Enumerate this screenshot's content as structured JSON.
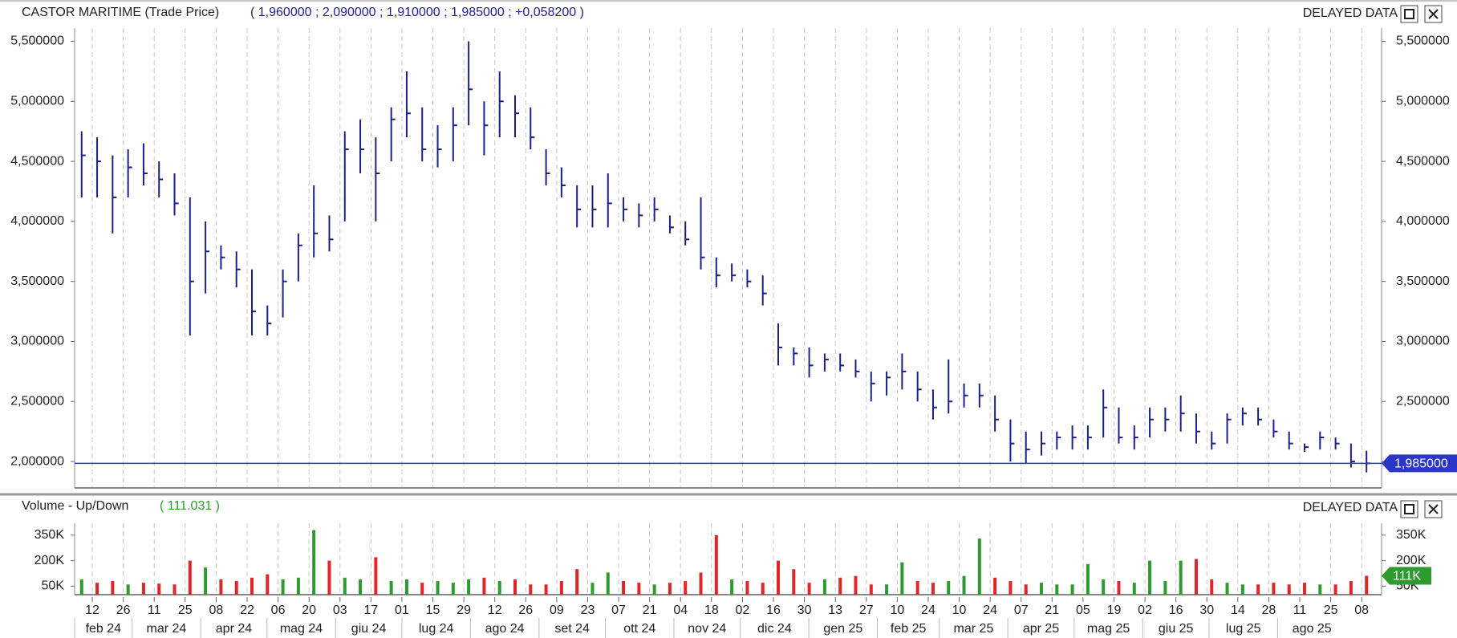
{
  "chart_data": [
    {
      "type": "ohlc",
      "title": "CASTOR MARITIME (Trade Price)",
      "quote": "( 1,960000 ;  2,090000 ;  1,910000 ;  1,985000 ;  +0,058200 )",
      "status": "DELAYED DATA",
      "color": "#1c1f8a",
      "x": [
        "2024-02-05",
        "2024-02-12",
        "2024-02-19",
        "2024-02-26",
        "2024-03-04",
        "2024-03-11",
        "2024-03-18",
        "2024-03-25",
        "2024-04-01",
        "2024-04-08",
        "2024-04-15",
        "2024-04-22",
        "2024-04-29",
        "2024-05-06",
        "2024-05-13",
        "2024-05-20",
        "2024-05-27",
        "2024-06-03",
        "2024-06-10",
        "2024-06-17",
        "2024-06-24",
        "2024-07-01",
        "2024-07-08",
        "2024-07-15",
        "2024-07-22",
        "2024-07-29",
        "2024-08-05",
        "2024-08-12",
        "2024-08-19",
        "2024-08-26",
        "2024-09-02",
        "2024-09-09",
        "2024-09-16",
        "2024-09-23",
        "2024-09-30",
        "2024-10-07",
        "2024-10-14",
        "2024-10-21",
        "2024-10-28",
        "2024-11-04",
        "2024-11-11",
        "2024-11-18",
        "2024-11-25",
        "2024-12-02",
        "2024-12-09",
        "2024-12-16",
        "2024-12-23",
        "2024-12-30",
        "2025-01-06",
        "2025-01-13",
        "2025-01-20",
        "2025-01-27",
        "2025-02-03",
        "2025-02-10",
        "2025-02-17",
        "2025-02-24",
        "2025-03-03",
        "2025-03-10",
        "2025-03-17",
        "2025-03-24",
        "2025-03-31",
        "2025-04-07",
        "2025-04-14",
        "2025-04-21",
        "2025-04-28",
        "2025-05-05",
        "2025-05-12",
        "2025-05-19",
        "2025-05-26",
        "2025-06-02",
        "2025-06-09",
        "2025-06-16",
        "2025-06-23",
        "2025-06-30",
        "2025-07-07",
        "2025-07-14",
        "2025-07-21",
        "2025-07-28",
        "2025-08-04",
        "2025-08-11",
        "2025-08-18",
        "2025-08-25",
        "2025-09-01",
        "2025-09-08"
      ],
      "high": [
        4.75,
        4.7,
        4.55,
        4.6,
        4.65,
        4.5,
        4.4,
        4.2,
        4.0,
        3.8,
        3.75,
        3.6,
        3.3,
        3.6,
        3.9,
        4.3,
        4.05,
        4.75,
        4.85,
        4.7,
        4.95,
        5.25,
        4.95,
        4.8,
        4.95,
        5.5,
        5.0,
        5.25,
        5.05,
        4.95,
        4.6,
        4.45,
        4.3,
        4.3,
        4.4,
        4.2,
        4.15,
        4.2,
        4.05,
        4.0,
        4.2,
        3.7,
        3.65,
        3.6,
        3.55,
        3.15,
        2.95,
        2.95,
        2.9,
        2.9,
        2.85,
        2.75,
        2.75,
        2.9,
        2.75,
        2.6,
        2.85,
        2.65,
        2.65,
        2.55,
        2.35,
        2.25,
        2.25,
        2.25,
        2.3,
        2.3,
        2.6,
        2.45,
        2.3,
        2.45,
        2.45,
        2.55,
        2.4,
        2.25,
        2.4,
        2.45,
        2.45,
        2.35,
        2.25,
        2.15,
        2.25,
        2.2,
        2.15,
        2.09
      ],
      "low": [
        4.2,
        4.2,
        3.9,
        4.2,
        4.3,
        4.2,
        4.05,
        3.05,
        3.4,
        3.6,
        3.45,
        3.05,
        3.05,
        3.2,
        3.5,
        3.7,
        3.75,
        4.0,
        4.4,
        4.0,
        4.5,
        4.7,
        4.5,
        4.45,
        4.5,
        4.8,
        4.55,
        4.7,
        4.7,
        4.6,
        4.3,
        4.2,
        3.95,
        3.95,
        3.95,
        4.0,
        3.95,
        4.0,
        3.9,
        3.8,
        3.6,
        3.45,
        3.5,
        3.45,
        3.3,
        2.8,
        2.8,
        2.7,
        2.75,
        2.75,
        2.7,
        2.5,
        2.55,
        2.6,
        2.5,
        2.35,
        2.4,
        2.45,
        2.45,
        2.25,
        2.0,
        1.98,
        2.05,
        2.1,
        2.1,
        2.1,
        2.2,
        2.15,
        2.1,
        2.2,
        2.25,
        2.25,
        2.15,
        2.1,
        2.15,
        2.3,
        2.3,
        2.2,
        2.1,
        2.08,
        2.1,
        2.1,
        1.95,
        1.91
      ],
      "close": [
        4.55,
        4.5,
        4.2,
        4.45,
        4.4,
        4.35,
        4.15,
        3.5,
        3.75,
        3.7,
        3.6,
        3.25,
        3.15,
        3.5,
        3.8,
        3.9,
        3.85,
        4.6,
        4.6,
        4.4,
        4.85,
        4.9,
        4.6,
        4.6,
        4.8,
        5.1,
        4.8,
        5.0,
        4.9,
        4.7,
        4.4,
        4.3,
        4.1,
        4.1,
        4.15,
        4.1,
        4.05,
        4.1,
        3.95,
        3.85,
        3.7,
        3.55,
        3.55,
        3.5,
        3.4,
        2.95,
        2.9,
        2.8,
        2.85,
        2.8,
        2.75,
        2.65,
        2.7,
        2.75,
        2.6,
        2.45,
        2.5,
        2.55,
        2.55,
        2.35,
        2.15,
        2.1,
        2.15,
        2.2,
        2.2,
        2.2,
        2.45,
        2.2,
        2.2,
        2.35,
        2.35,
        2.4,
        2.25,
        2.15,
        2.35,
        2.4,
        2.35,
        2.25,
        2.15,
        2.12,
        2.2,
        2.15,
        2.0,
        1.985
      ],
      "last": {
        "value": 1.985,
        "label": "1,985000"
      },
      "last_color": "#2a35c9",
      "xlim": [
        "2024-02-04",
        "2025-09-17"
      ],
      "ylim": [
        1.78,
        5.61
      ],
      "yticks": [
        {
          "value": 2.0,
          "label": "2,000000"
        },
        {
          "value": 2.5,
          "label": "2,500000"
        },
        {
          "value": 3.0,
          "label": "3,000000"
        },
        {
          "value": 3.5,
          "label": "3,500000"
        },
        {
          "value": 4.0,
          "label": "4,000000"
        },
        {
          "value": 4.5,
          "label": "4,500000"
        },
        {
          "value": 5.0,
          "label": "5,000000"
        },
        {
          "value": 5.5,
          "label": "5,500000"
        }
      ],
      "grid": true
    },
    {
      "type": "volume",
      "title": "Volume - Up/Down",
      "quote": "( 111.031 )",
      "status": "DELAYED DATA",
      "up_color": "#2f9a2f",
      "down_color": "#e0262a",
      "x": [
        "2024-02-05",
        "2024-02-12",
        "2024-02-19",
        "2024-02-26",
        "2024-03-04",
        "2024-03-11",
        "2024-03-18",
        "2024-03-25",
        "2024-04-01",
        "2024-04-08",
        "2024-04-15",
        "2024-04-22",
        "2024-04-29",
        "2024-05-06",
        "2024-05-13",
        "2024-05-20",
        "2024-05-27",
        "2024-06-03",
        "2024-06-10",
        "2024-06-17",
        "2024-06-24",
        "2024-07-01",
        "2024-07-08",
        "2024-07-15",
        "2024-07-22",
        "2024-07-29",
        "2024-08-05",
        "2024-08-12",
        "2024-08-19",
        "2024-08-26",
        "2024-09-02",
        "2024-09-09",
        "2024-09-16",
        "2024-09-23",
        "2024-09-30",
        "2024-10-07",
        "2024-10-14",
        "2024-10-21",
        "2024-10-28",
        "2024-11-04",
        "2024-11-11",
        "2024-11-18",
        "2024-11-25",
        "2024-12-02",
        "2024-12-09",
        "2024-12-16",
        "2024-12-23",
        "2024-12-30",
        "2025-01-06",
        "2025-01-13",
        "2025-01-20",
        "2025-01-27",
        "2025-02-03",
        "2025-02-10",
        "2025-02-17",
        "2025-02-24",
        "2025-03-03",
        "2025-03-10",
        "2025-03-17",
        "2025-03-24",
        "2025-03-31",
        "2025-04-07",
        "2025-04-14",
        "2025-04-21",
        "2025-04-28",
        "2025-05-05",
        "2025-05-12",
        "2025-05-19",
        "2025-05-26",
        "2025-06-02",
        "2025-06-09",
        "2025-06-16",
        "2025-06-23",
        "2025-06-30",
        "2025-07-07",
        "2025-07-14",
        "2025-07-21",
        "2025-07-28",
        "2025-08-04",
        "2025-08-11",
        "2025-08-18",
        "2025-08-25",
        "2025-09-01",
        "2025-09-08"
      ],
      "values": [
        90000,
        70000,
        80000,
        60000,
        70000,
        65000,
        60000,
        200000,
        160000,
        90000,
        80000,
        100000,
        120000,
        90000,
        100000,
        380000,
        200000,
        100000,
        90000,
        220000,
        80000,
        90000,
        70000,
        80000,
        70000,
        90000,
        100000,
        80000,
        90000,
        60000,
        60000,
        80000,
        150000,
        70000,
        130000,
        80000,
        70000,
        60000,
        70000,
        80000,
        130000,
        350000,
        90000,
        80000,
        70000,
        200000,
        150000,
        70000,
        90000,
        100000,
        110000,
        60000,
        60000,
        190000,
        80000,
        70000,
        80000,
        110000,
        330000,
        100000,
        80000,
        60000,
        70000,
        60000,
        60000,
        180000,
        90000,
        80000,
        70000,
        200000,
        80000,
        200000,
        210000,
        90000,
        70000,
        60000,
        60000,
        70000,
        60000,
        70000,
        60000,
        60000,
        80000,
        111031
      ],
      "last": {
        "value": 111031,
        "label": "111K"
      },
      "xlim": [
        "2024-02-04",
        "2025-09-17"
      ],
      "ylim": [
        0,
        420000
      ],
      "yticks": [
        {
          "value": 50000,
          "label": "50K"
        },
        {
          "value": 200000,
          "label": "200K"
        },
        {
          "value": 350000,
          "label": "350K"
        }
      ],
      "grid": true,
      "xticks": [
        {
          "value": "2024-02-12",
          "label": "12"
        },
        {
          "value": "2024-02-26",
          "label": "26"
        },
        {
          "value": "2024-03-11",
          "label": "11"
        },
        {
          "value": "2024-03-25",
          "label": "25"
        },
        {
          "value": "2024-04-08",
          "label": "08"
        },
        {
          "value": "2024-04-22",
          "label": "22"
        },
        {
          "value": "2024-05-06",
          "label": "06"
        },
        {
          "value": "2024-05-20",
          "label": "20"
        },
        {
          "value": "2024-06-03",
          "label": "03"
        },
        {
          "value": "2024-06-17",
          "label": "17"
        },
        {
          "value": "2024-07-01",
          "label": "01"
        },
        {
          "value": "2024-07-15",
          "label": "15"
        },
        {
          "value": "2024-07-29",
          "label": "29"
        },
        {
          "value": "2024-08-12",
          "label": "12"
        },
        {
          "value": "2024-08-26",
          "label": "26"
        },
        {
          "value": "2024-09-09",
          "label": "09"
        },
        {
          "value": "2024-09-23",
          "label": "23"
        },
        {
          "value": "2024-10-07",
          "label": "07"
        },
        {
          "value": "2024-10-21",
          "label": "21"
        },
        {
          "value": "2024-11-04",
          "label": "04"
        },
        {
          "value": "2024-11-18",
          "label": "18"
        },
        {
          "value": "2024-12-02",
          "label": "02"
        },
        {
          "value": "2024-12-16",
          "label": "16"
        },
        {
          "value": "2024-12-30",
          "label": "30"
        },
        {
          "value": "2025-01-13",
          "label": "13"
        },
        {
          "value": "2025-01-27",
          "label": "27"
        },
        {
          "value": "2025-02-10",
          "label": "10"
        },
        {
          "value": "2025-02-24",
          "label": "24"
        },
        {
          "value": "2025-03-10",
          "label": "10"
        },
        {
          "value": "2025-03-24",
          "label": "24"
        },
        {
          "value": "2025-04-07",
          "label": "07"
        },
        {
          "value": "2025-04-21",
          "label": "21"
        },
        {
          "value": "2025-05-05",
          "label": "05"
        },
        {
          "value": "2025-05-19",
          "label": "19"
        },
        {
          "value": "2025-06-02",
          "label": "02"
        },
        {
          "value": "2025-06-16",
          "label": "16"
        },
        {
          "value": "2025-06-30",
          "label": "30"
        },
        {
          "value": "2025-07-14",
          "label": "14"
        },
        {
          "value": "2025-07-28",
          "label": "28"
        },
        {
          "value": "2025-08-11",
          "label": "11"
        },
        {
          "value": "2025-08-25",
          "label": "25"
        },
        {
          "value": "2025-09-08",
          "label": "08"
        }
      ],
      "months": [
        {
          "value": "2024-02",
          "label": "feb 24"
        },
        {
          "value": "2024-03",
          "label": "mar 24"
        },
        {
          "value": "2024-04",
          "label": "apr 24"
        },
        {
          "value": "2024-05",
          "label": "mag 24"
        },
        {
          "value": "2024-06",
          "label": "giu 24"
        },
        {
          "value": "2024-07",
          "label": "lug 24"
        },
        {
          "value": "2024-08",
          "label": "ago 24"
        },
        {
          "value": "2024-09",
          "label": "set 24"
        },
        {
          "value": "2024-10",
          "label": "ott 24"
        },
        {
          "value": "2024-11",
          "label": "nov 24"
        },
        {
          "value": "2024-12",
          "label": "dic 24"
        },
        {
          "value": "2025-01",
          "label": "gen 25"
        },
        {
          "value": "2025-02",
          "label": "feb 25"
        },
        {
          "value": "2025-03",
          "label": "mar 25"
        },
        {
          "value": "2025-04",
          "label": "apr 25"
        },
        {
          "value": "2025-05",
          "label": "mag 25"
        },
        {
          "value": "2025-06",
          "label": "giu 25"
        },
        {
          "value": "2025-07",
          "label": "lug 25"
        },
        {
          "value": "2025-08",
          "label": "ago 25"
        }
      ]
    }
  ]
}
